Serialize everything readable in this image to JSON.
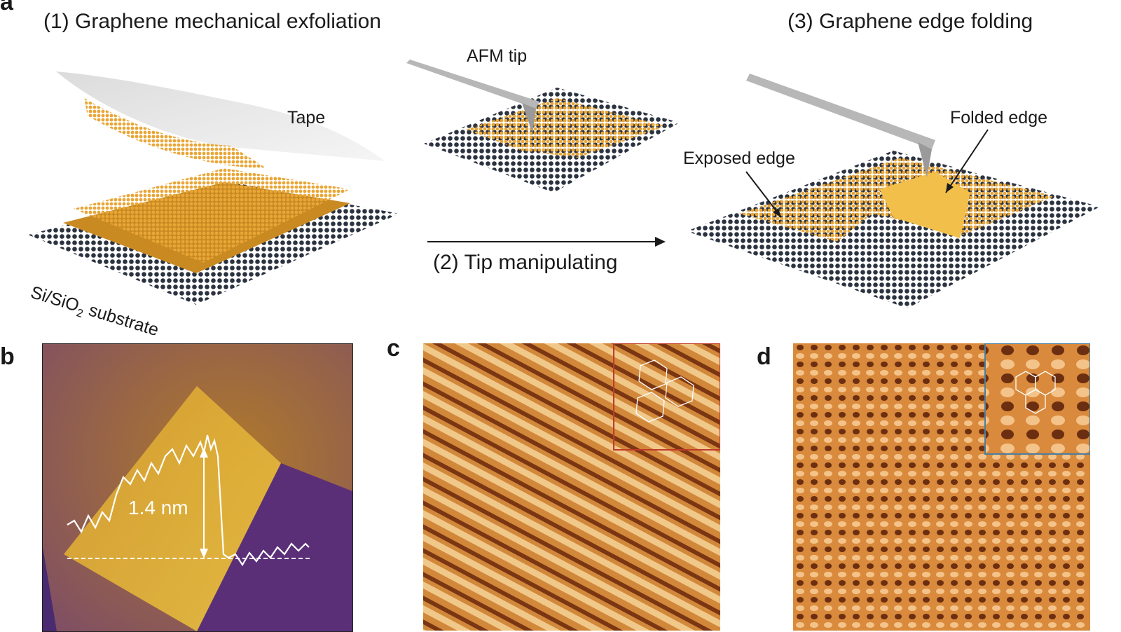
{
  "panel_a": {
    "letter": "a",
    "step1_title": "(1) Graphene mechanical exfoliation",
    "step2_label": "(2) Tip manipulating",
    "step3_title": "(3) Graphene edge folding",
    "tape_label": "Tape",
    "substrate_label_main": "Si/SiO",
    "substrate_label_sub": "2",
    "substrate_label_end": " substrate",
    "afm_tip_label": "AFM tip",
    "exposed_edge_label": "Exposed edge",
    "folded_edge_label": "Folded edge"
  },
  "panel_b": {
    "letter": "b",
    "height_label": "1.4 nm"
  },
  "panel_c": {
    "letter": "c"
  },
  "panel_d": {
    "letter": "d"
  },
  "colors": {
    "graphene": "#e3a333",
    "substrate": "#2c3340",
    "afm_purple": "#6a3a8a",
    "afm_gold": "#d9a02a",
    "stm_orange": "#d0863a",
    "stm_dark": "#6b2e10",
    "inset_c_border": "#c0392b",
    "inset_d_border": "#4a7fa0"
  }
}
